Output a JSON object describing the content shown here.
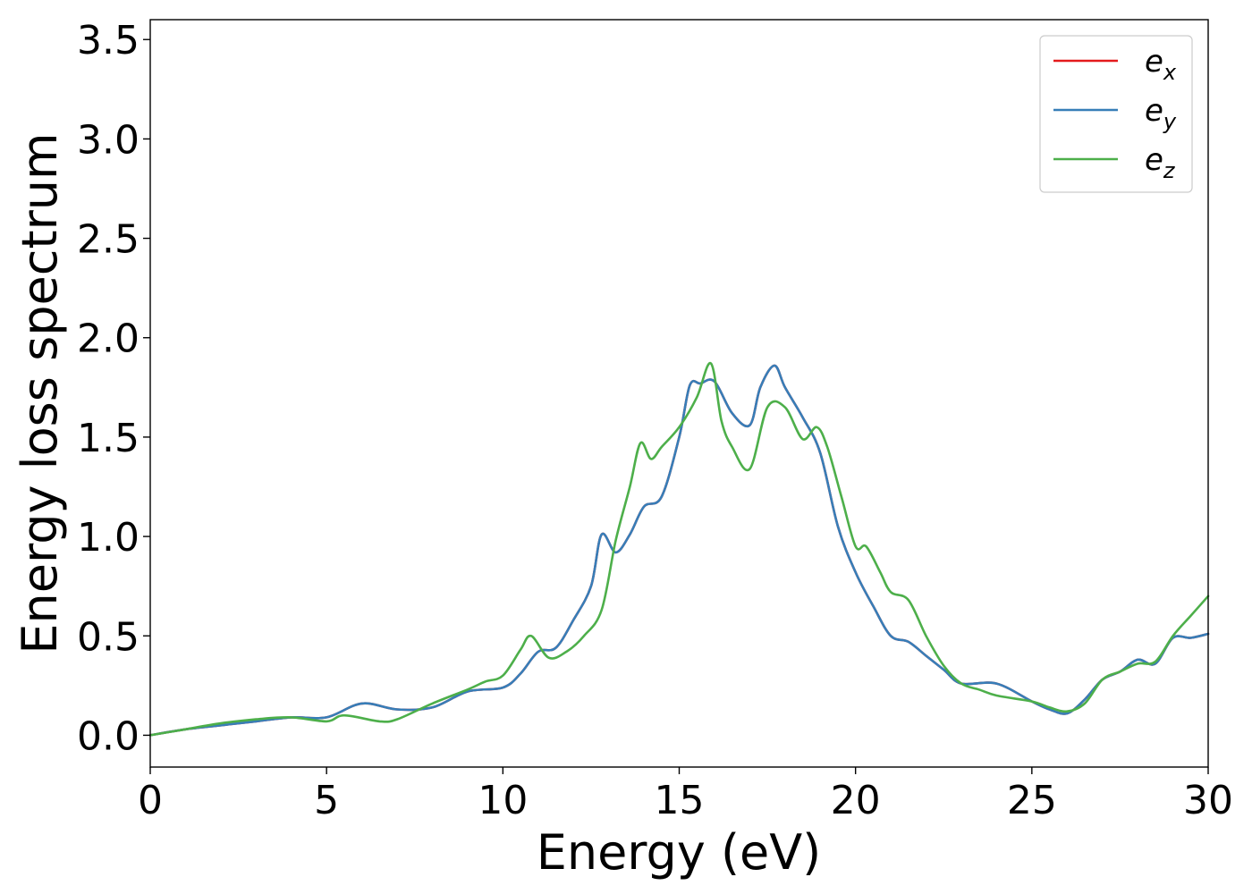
{
  "chart_data": {
    "type": "line",
    "xlabel": "Energy (eV)",
    "ylabel": "Energy loss spectrum",
    "xlim": [
      0,
      30
    ],
    "ylim": [
      -0.16,
      3.6
    ],
    "xticks": [
      0,
      5,
      10,
      15,
      20,
      25,
      30
    ],
    "yticks": [
      0.0,
      0.5,
      1.0,
      1.5,
      2.0,
      2.5,
      3.0,
      3.5
    ],
    "xtick_labels": [
      "0",
      "5",
      "10",
      "15",
      "20",
      "25",
      "30"
    ],
    "ytick_labels": [
      "0.0",
      "0.5",
      "1.0",
      "1.5",
      "2.0",
      "2.5",
      "3.0",
      "3.5"
    ],
    "grid": false,
    "legend_position": "top-right",
    "series": [
      {
        "name": "e_x",
        "label_base": "e",
        "label_sub": "x",
        "color": "#e41a1c",
        "x": [
          0,
          1,
          2,
          3,
          4,
          5,
          6,
          7,
          8,
          9,
          10,
          10.5,
          11,
          11.5,
          12,
          12.5,
          12.8,
          13.2,
          13.6,
          14,
          14.5,
          15,
          15.3,
          15.6,
          16,
          16.5,
          17,
          17.3,
          17.7,
          18,
          18.5,
          19,
          19.5,
          20,
          20.5,
          21,
          21.5,
          22,
          22.5,
          23,
          24,
          25,
          25.5,
          26,
          26.5,
          27,
          27.5,
          28,
          28.5,
          29,
          29.5,
          30
        ],
        "y": [
          0.0,
          0.03,
          0.05,
          0.07,
          0.09,
          0.09,
          0.16,
          0.13,
          0.14,
          0.22,
          0.24,
          0.31,
          0.42,
          0.44,
          0.58,
          0.75,
          1.01,
          0.92,
          1.01,
          1.15,
          1.2,
          1.5,
          1.76,
          1.77,
          1.78,
          1.62,
          1.56,
          1.75,
          1.86,
          1.75,
          1.6,
          1.42,
          1.05,
          0.82,
          0.65,
          0.5,
          0.47,
          0.4,
          0.33,
          0.26,
          0.26,
          0.17,
          0.13,
          0.11,
          0.18,
          0.28,
          0.32,
          0.38,
          0.36,
          0.49,
          0.49,
          0.51
        ]
      },
      {
        "name": "e_y",
        "label_base": "e",
        "label_sub": "y",
        "color": "#377eb8",
        "x": [
          0,
          1,
          2,
          3,
          4,
          5,
          6,
          7,
          8,
          9,
          10,
          10.5,
          11,
          11.5,
          12,
          12.5,
          12.8,
          13.2,
          13.6,
          14,
          14.5,
          15,
          15.3,
          15.6,
          16,
          16.5,
          17,
          17.3,
          17.7,
          18,
          18.5,
          19,
          19.5,
          20,
          20.5,
          21,
          21.5,
          22,
          22.5,
          23,
          24,
          25,
          25.5,
          26,
          26.5,
          27,
          27.5,
          28,
          28.5,
          29,
          29.5,
          30
        ],
        "y": [
          0.0,
          0.03,
          0.05,
          0.07,
          0.09,
          0.09,
          0.16,
          0.13,
          0.14,
          0.22,
          0.24,
          0.31,
          0.42,
          0.44,
          0.58,
          0.75,
          1.01,
          0.92,
          1.01,
          1.15,
          1.2,
          1.5,
          1.76,
          1.77,
          1.78,
          1.62,
          1.56,
          1.75,
          1.86,
          1.75,
          1.6,
          1.42,
          1.05,
          0.82,
          0.65,
          0.5,
          0.47,
          0.4,
          0.33,
          0.26,
          0.26,
          0.17,
          0.13,
          0.11,
          0.18,
          0.28,
          0.32,
          0.38,
          0.36,
          0.49,
          0.49,
          0.51
        ]
      },
      {
        "name": "e_z",
        "label_base": "e",
        "label_sub": "z",
        "color": "#4daf4a",
        "x": [
          0,
          1,
          2,
          3,
          4,
          5,
          5.5,
          6.5,
          7,
          8,
          9,
          9.5,
          10,
          10.5,
          10.8,
          11.3,
          11.8,
          12.3,
          12.8,
          13.2,
          13.6,
          13.9,
          14.2,
          14.5,
          15,
          15.5,
          15.9,
          16.2,
          16.5,
          17,
          17.5,
          18,
          18.5,
          18.9,
          19.2,
          19.6,
          20,
          20.3,
          20.7,
          21,
          21.5,
          22,
          22.5,
          23,
          23.5,
          24,
          25,
          25.5,
          26,
          26.5,
          27,
          27.5,
          28,
          28.5,
          29,
          29.5,
          30
        ],
        "y": [
          0.0,
          0.03,
          0.06,
          0.08,
          0.09,
          0.07,
          0.1,
          0.07,
          0.08,
          0.16,
          0.23,
          0.27,
          0.3,
          0.43,
          0.5,
          0.39,
          0.42,
          0.5,
          0.63,
          0.98,
          1.25,
          1.47,
          1.39,
          1.45,
          1.55,
          1.7,
          1.87,
          1.58,
          1.45,
          1.34,
          1.65,
          1.65,
          1.49,
          1.55,
          1.45,
          1.2,
          0.95,
          0.95,
          0.82,
          0.72,
          0.68,
          0.5,
          0.35,
          0.26,
          0.23,
          0.2,
          0.17,
          0.14,
          0.12,
          0.16,
          0.28,
          0.32,
          0.36,
          0.37,
          0.5,
          0.6,
          0.7
        ]
      }
    ]
  }
}
